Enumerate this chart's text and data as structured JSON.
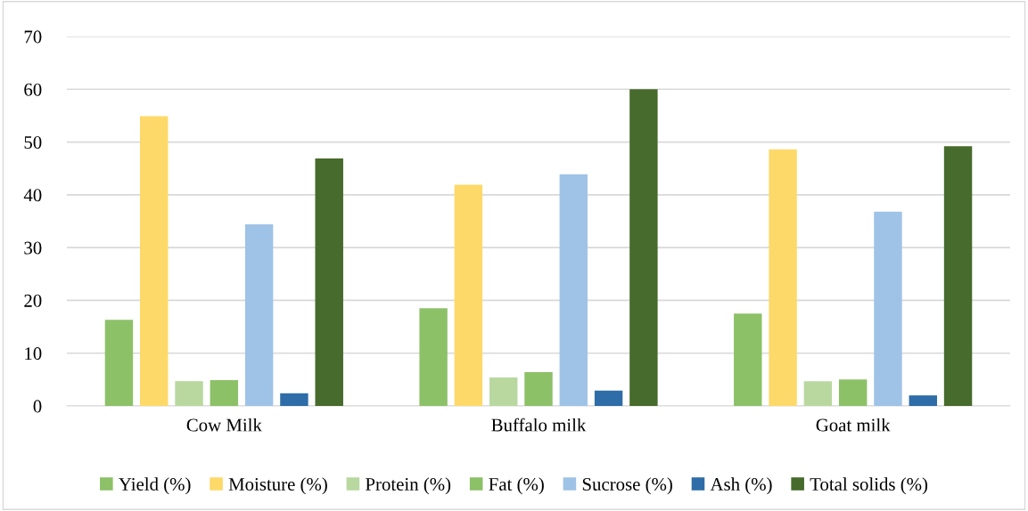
{
  "chart_data": {
    "type": "bar",
    "categories": [
      "Cow Milk",
      "Buffalo milk",
      "Goat milk"
    ],
    "series": [
      {
        "name": "Yield (%)",
        "color": "#8dc168",
        "values": [
          16.3,
          18.5,
          17.5
        ]
      },
      {
        "name": "Moisture (%)",
        "color": "#fdd969",
        "values": [
          54.9,
          41.9,
          48.6
        ]
      },
      {
        "name": "Protein (%)",
        "color": "#b8d8a0",
        "values": [
          4.7,
          5.4,
          4.7
        ]
      },
      {
        "name": "Fat (%)",
        "color": "#8dc168",
        "values": [
          4.9,
          6.4,
          5.0
        ]
      },
      {
        "name": "Sucrose (%)",
        "color": "#9fc3e6",
        "values": [
          34.4,
          43.9,
          36.8
        ]
      },
      {
        "name": "Ash (%)",
        "color": "#2e6da8",
        "values": [
          2.4,
          2.9,
          2.0
        ]
      },
      {
        "name": "Total solids (%)",
        "color": "#466b2c",
        "values": [
          46.9,
          60,
          49.2
        ]
      }
    ],
    "ylim": [
      0,
      70
    ],
    "yticks": [
      0,
      10,
      20,
      30,
      40,
      50,
      60,
      70
    ],
    "grid": "y",
    "legend": "bottom"
  }
}
